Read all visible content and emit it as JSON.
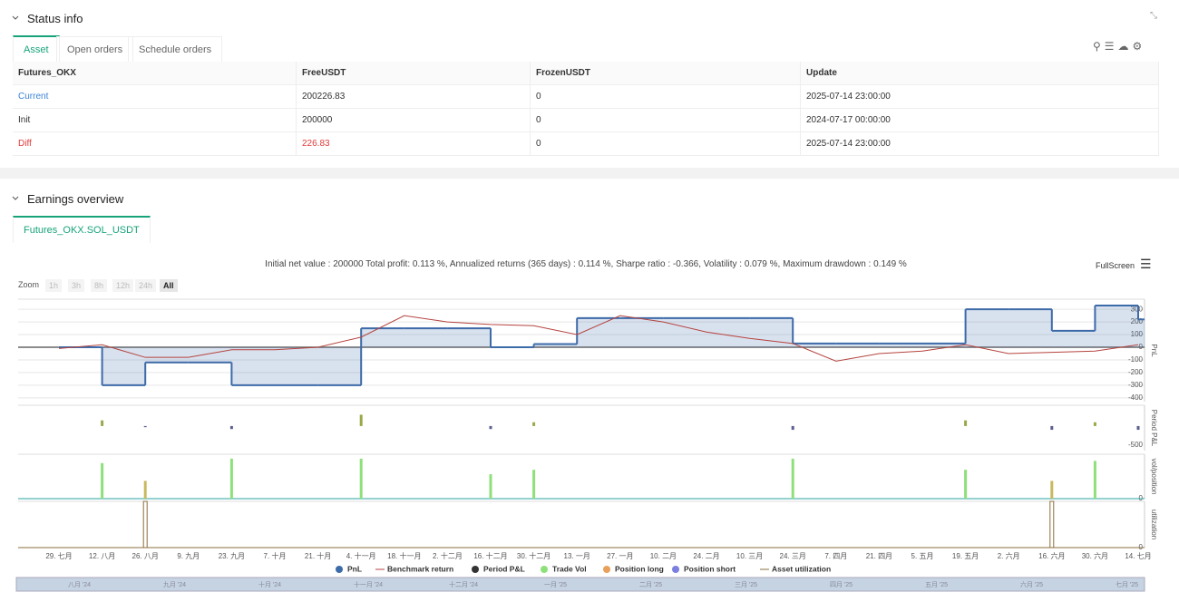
{
  "status_info": {
    "title": "Status info",
    "tabs": [
      "Asset",
      "Open orders",
      "Schedule orders"
    ],
    "table": {
      "header": [
        "Futures_OKX",
        "FreeUSDT",
        "FrozenUSDT",
        "Update"
      ],
      "rows": [
        [
          "Current",
          "200226.83",
          "0",
          "2025-07-14 23:00:00"
        ],
        [
          "Init",
          "200000",
          "0",
          "2024-07-17 00:00:00"
        ],
        [
          "Diff",
          "226.83",
          "0",
          "2025-07-14 23:00:00"
        ]
      ]
    }
  },
  "earnings_overview": {
    "title": "Earnings overview",
    "tab": "Futures_OKX.SOL_USDT",
    "summary": "Initial net value : 200000 Total profit: 0.113 %, Annualized returns (365 days) : 0.114 %, Sharpe ratio : -0.366, Volatility : 0.079 %, Maximum drawdown : 0.149 %",
    "fullscreen": "FullScreen",
    "zoom": {
      "label": "Zoom",
      "buttons": [
        "1h",
        "3h",
        "8h",
        "12h",
        "24h",
        "All"
      ]
    },
    "navigator_labels": [
      "八月 '24",
      "九月 '24",
      "十月 '24",
      "十一月 '24",
      "十二月 '24",
      "一月 '25",
      "二月 '25",
      "三月 '25",
      "四月 '25",
      "五月 '25",
      "六月 '25",
      "七月 '25"
    ]
  },
  "chart_data": {
    "type": "line",
    "categories": [
      "29. 七月",
      "12. 八月",
      "26. 八月",
      "9. 九月",
      "23. 九月",
      "7. 十月",
      "21. 十月",
      "4. 十一月",
      "18. 十一月",
      "2. 十二月",
      "16. 十二月",
      "30. 十二月",
      "13. 一月",
      "27. 一月",
      "10. 二月",
      "24. 二月",
      "10. 三月",
      "24. 三月",
      "7. 四月",
      "21. 四月",
      "5. 五月",
      "19. 五月",
      "2. 六月",
      "16. 六月",
      "30. 六月",
      "14. 七月"
    ],
    "panels": [
      {
        "title": "PnL",
        "ylim": [
          -430,
          380
        ],
        "yticks": [
          300,
          200,
          100,
          0,
          -100,
          -200,
          -300,
          -400
        ]
      },
      {
        "title": "Period P&L",
        "ylim": [
          -650,
          550
        ],
        "yticks": [
          -500
        ]
      },
      {
        "title": "vol/position",
        "ylim": [
          0,
          100
        ],
        "yticks": [
          0
        ]
      },
      {
        "title": "utilization",
        "ylim": [
          0,
          100
        ],
        "yticks": [
          0
        ]
      }
    ],
    "series": [
      {
        "name": "PnL",
        "color": "#3d6aa8",
        "panel": 0,
        "values": [
          0,
          -300,
          -120,
          -120,
          -300,
          -300,
          -300,
          150,
          150,
          150,
          0,
          25,
          230,
          230,
          230,
          230,
          230,
          30,
          30,
          30,
          30,
          300,
          300,
          130,
          330,
          220
        ]
      },
      {
        "name": "Benchmark return",
        "color": "#b5443f",
        "panel": 0,
        "values": [
          -10,
          20,
          -80,
          -80,
          -20,
          -20,
          0,
          80,
          250,
          200,
          180,
          170,
          100,
          250,
          200,
          120,
          70,
          30,
          -110,
          -50,
          -30,
          20,
          -50,
          -40,
          -30,
          20
        ]
      },
      {
        "name": "Period P&L",
        "color": "#333333",
        "up_color": "#9aa84a",
        "down_color": "#5b5f8e",
        "panel": 1,
        "values": [
          null,
          150,
          -30,
          null,
          -80,
          null,
          null,
          300,
          null,
          null,
          -80,
          100,
          null,
          null,
          null,
          null,
          null,
          -100,
          null,
          null,
          null,
          150,
          null,
          -100,
          100,
          -100
        ]
      },
      {
        "name": "Trade Vol",
        "color": "#8ee07a",
        "panel": 2,
        "values": [
          null,
          80,
          null,
          null,
          90,
          null,
          null,
          90,
          null,
          null,
          55,
          65,
          null,
          null,
          null,
          null,
          null,
          90,
          null,
          null,
          null,
          65,
          null,
          null,
          85,
          null
        ]
      },
      {
        "name": "Position long",
        "color": "#e8a05a",
        "bar_color": "#c8b860",
        "panel": 2,
        "values": [
          null,
          null,
          40,
          null,
          null,
          null,
          null,
          null,
          null,
          null,
          null,
          null,
          null,
          null,
          null,
          null,
          null,
          null,
          null,
          null,
          null,
          null,
          null,
          40,
          null,
          null
        ]
      },
      {
        "name": "Position short",
        "color": "#7b7fe0"
      },
      {
        "name": "Asset utilization",
        "color": "#8b6d3c",
        "panel": 3,
        "values": [
          null,
          null,
          100,
          null,
          null,
          null,
          null,
          null,
          null,
          null,
          null,
          null,
          null,
          null,
          null,
          null,
          null,
          null,
          null,
          null,
          null,
          null,
          null,
          100,
          null,
          null
        ]
      }
    ]
  }
}
